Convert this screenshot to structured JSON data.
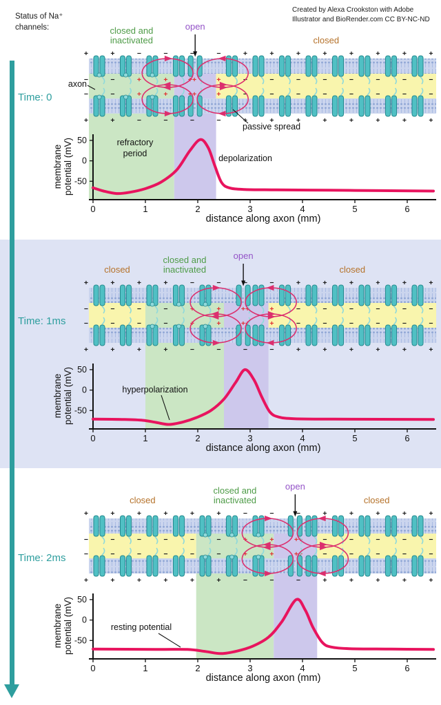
{
  "header": {
    "status_line1": "Status of Na⁺",
    "status_line2": "channels:",
    "attribution_line1": "Created by Alexa Crookston with Adobe",
    "attribution_line2": "Illustrator and BioRender.com CC BY-NC-ND"
  },
  "state_text": {
    "closed": "closed",
    "inactivated_line1": "closed and",
    "inactivated_line2": "inactivated",
    "open": "open"
  },
  "colors": {
    "teal_text": "#2E9E9E",
    "curve": "#E8145E",
    "loop": "#DC2F6E",
    "red_sign": "#E03131",
    "sign": "#1A1A1A",
    "membrane_bg": "#CBD5EE",
    "lipid_head": "#8FA6D5",
    "lipid_tail": "#AABBE3",
    "channel": "#50C0C4",
    "channel_dark": "#23898E",
    "channel_light": "#8FD9DB",
    "panel2_bg": "#DEE3F4",
    "axis": "#111111",
    "regions": {
      "closed": "#F9F5AD",
      "inactivated": "#CBE6C4",
      "open": "#CDC8EC"
    },
    "state_label": {
      "closed": "#B5722A",
      "inactivated": "#4E9B47",
      "open": "#9454C8"
    }
  },
  "panels": [
    {
      "time_label": "Time: 0",
      "annotations": {
        "refractory_line1": "refractory",
        "refractory_line2": "period",
        "depolarization": "depolarization",
        "passive_spread": "passive spread",
        "axon": "axon"
      }
    },
    {
      "time_label": "Time: 1ms",
      "annotations": {
        "hyperpolarization": "hyperpolarization"
      }
    },
    {
      "time_label": "Time: 2ms",
      "annotations": {
        "resting_potential": "resting potential"
      }
    }
  ],
  "chart_data": [
    {
      "type": "line",
      "title": "Time: 0",
      "xlabel": "distance along axon (mm)",
      "ylabel_lines": [
        "membrane",
        "potential (mV)"
      ],
      "xticks": [
        0,
        1,
        2,
        3,
        4,
        5,
        6
      ],
      "yticks": [
        50,
        0,
        -50
      ],
      "xlim": [
        0,
        6.55
      ],
      "ylim": [
        -95,
        65
      ],
      "open_channel_mm": 1.95,
      "regions": [
        {
          "state": "inactivated",
          "from": 0,
          "to": 1.55
        },
        {
          "state": "open",
          "from": 1.55,
          "to": 2.35
        },
        {
          "state": "closed",
          "from": 2.35,
          "to": 6.55
        }
      ],
      "points": [
        [
          0,
          -66
        ],
        [
          0.2,
          -74
        ],
        [
          0.45,
          -80
        ],
        [
          0.7,
          -77
        ],
        [
          1,
          -68
        ],
        [
          1.3,
          -52
        ],
        [
          1.6,
          -22
        ],
        [
          1.85,
          25
        ],
        [
          2.05,
          52
        ],
        [
          2.2,
          32
        ],
        [
          2.32,
          -10
        ],
        [
          2.45,
          -52
        ],
        [
          2.6,
          -66
        ],
        [
          2.9,
          -70
        ],
        [
          3.5,
          -71
        ],
        [
          4.5,
          -72
        ],
        [
          5.5,
          -73
        ],
        [
          6.5,
          -74
        ]
      ]
    },
    {
      "type": "line",
      "title": "Time: 1ms",
      "xlabel": "distance along axon (mm)",
      "ylabel_lines": [
        "membrane",
        "potential (mV)"
      ],
      "xticks": [
        0,
        1,
        2,
        3,
        4,
        5,
        6
      ],
      "yticks": [
        50,
        0,
        -50
      ],
      "xlim": [
        0,
        6.55
      ],
      "ylim": [
        -95,
        65
      ],
      "open_channel_mm": 2.87,
      "regions": [
        {
          "state": "closed",
          "from": 0,
          "to": 1.0
        },
        {
          "state": "inactivated",
          "from": 1.0,
          "to": 2.5
        },
        {
          "state": "open",
          "from": 2.5,
          "to": 3.35
        },
        {
          "state": "closed",
          "from": 3.35,
          "to": 6.55
        }
      ],
      "points": [
        [
          0,
          -71
        ],
        [
          0.6,
          -72
        ],
        [
          0.95,
          -74
        ],
        [
          1.2,
          -79
        ],
        [
          1.45,
          -84
        ],
        [
          1.72,
          -78
        ],
        [
          1.98,
          -67
        ],
        [
          2.25,
          -50
        ],
        [
          2.5,
          -22
        ],
        [
          2.72,
          18
        ],
        [
          2.9,
          50
        ],
        [
          3.07,
          26
        ],
        [
          3.22,
          -16
        ],
        [
          3.38,
          -54
        ],
        [
          3.55,
          -66
        ],
        [
          3.85,
          -70
        ],
        [
          4.6,
          -71
        ],
        [
          6.5,
          -72
        ]
      ]
    },
    {
      "type": "line",
      "title": "Time: 2ms",
      "xlabel": "distance along axon (mm)",
      "ylabel_lines": [
        "membrane",
        "potential (mV)"
      ],
      "xticks": [
        0,
        1,
        2,
        3,
        4,
        5,
        6
      ],
      "yticks": [
        50,
        0,
        -50
      ],
      "xlim": [
        0,
        6.55
      ],
      "ylim": [
        -95,
        65
      ],
      "open_channel_mm": 3.86,
      "regions": [
        {
          "state": "closed",
          "from": 0,
          "to": 1.97
        },
        {
          "state": "inactivated",
          "from": 1.97,
          "to": 3.45
        },
        {
          "state": "open",
          "from": 3.45,
          "to": 4.28
        },
        {
          "state": "closed",
          "from": 4.28,
          "to": 6.55
        }
      ],
      "points": [
        [
          0,
          -71
        ],
        [
          1.2,
          -72
        ],
        [
          1.8,
          -72
        ],
        [
          2.15,
          -77
        ],
        [
          2.45,
          -82
        ],
        [
          2.75,
          -76
        ],
        [
          3.05,
          -64
        ],
        [
          3.35,
          -42
        ],
        [
          3.6,
          -5
        ],
        [
          3.88,
          50
        ],
        [
          4.05,
          25
        ],
        [
          4.2,
          -18
        ],
        [
          4.38,
          -55
        ],
        [
          4.55,
          -66
        ],
        [
          4.9,
          -70
        ],
        [
          5.7,
          -71
        ],
        [
          6.5,
          -72
        ]
      ]
    }
  ]
}
